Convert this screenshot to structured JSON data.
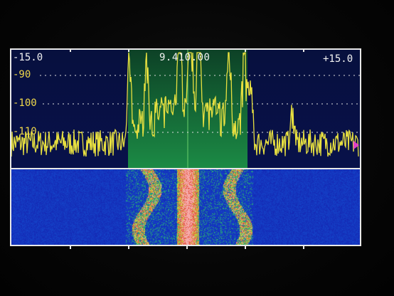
{
  "header": {
    "span_left": "-15.0",
    "center_frequency": "9.410.00",
    "span_right": "+15.0"
  },
  "db_scale": {
    "labels": [
      "-90",
      "-100",
      "-110"
    ]
  },
  "colors": {
    "trace": "#e8e040",
    "passband": "#1e8a3c",
    "spectrum_bg": "#08114a",
    "waterfall_base": "#1d2cb8",
    "marker": "#e040c8",
    "frame": "#e8e8e8"
  },
  "icons": {
    "marker": "triangle-right-icon"
  }
}
